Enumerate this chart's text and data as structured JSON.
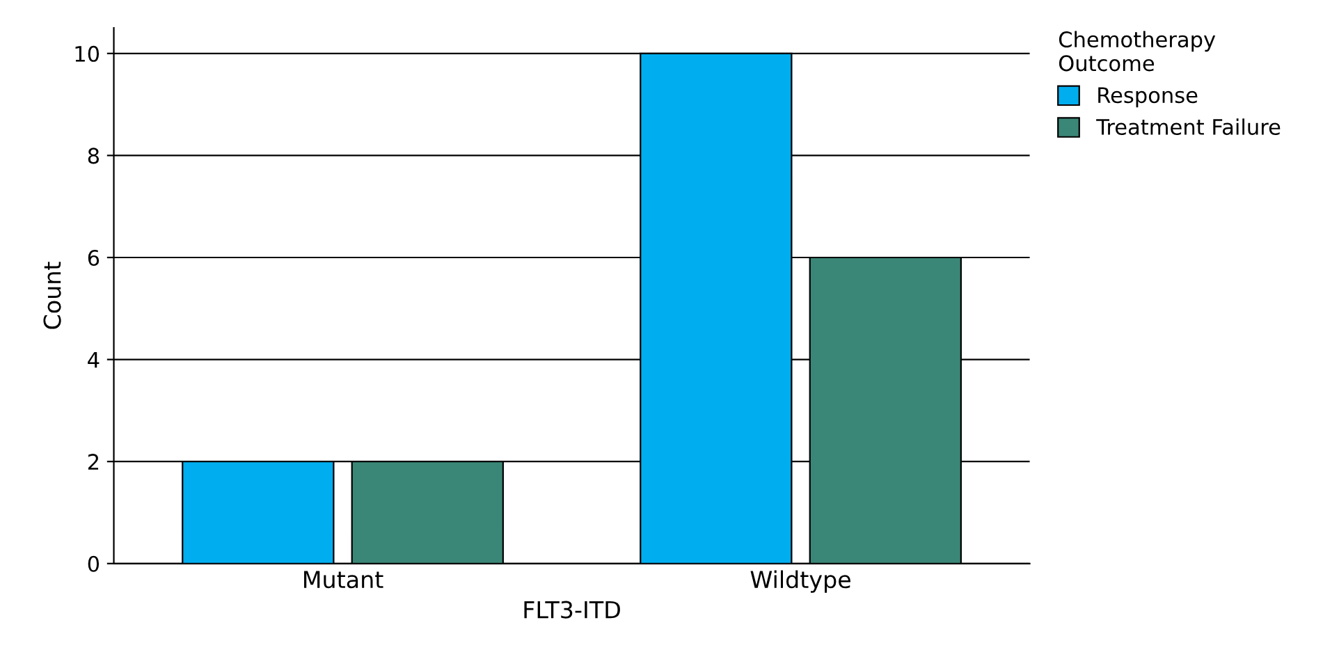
{
  "chart_data": {
    "type": "bar",
    "xlabel": "FLT3-ITD",
    "ylabel": "Count",
    "legend_title": "Chemotherapy\nOutcome",
    "categories": [
      "Mutant",
      "Wildtype"
    ],
    "series": [
      {
        "name": "Response",
        "color": "#00aeef",
        "values": [
          2,
          10
        ]
      },
      {
        "name": "Treatment Failure",
        "color": "#3b8777",
        "values": [
          2,
          6
        ]
      }
    ],
    "ylim": [
      0,
      10.5
    ],
    "yticks": [
      0,
      2,
      4,
      6,
      8,
      10
    ],
    "grid": "y",
    "legend": "top right"
  }
}
